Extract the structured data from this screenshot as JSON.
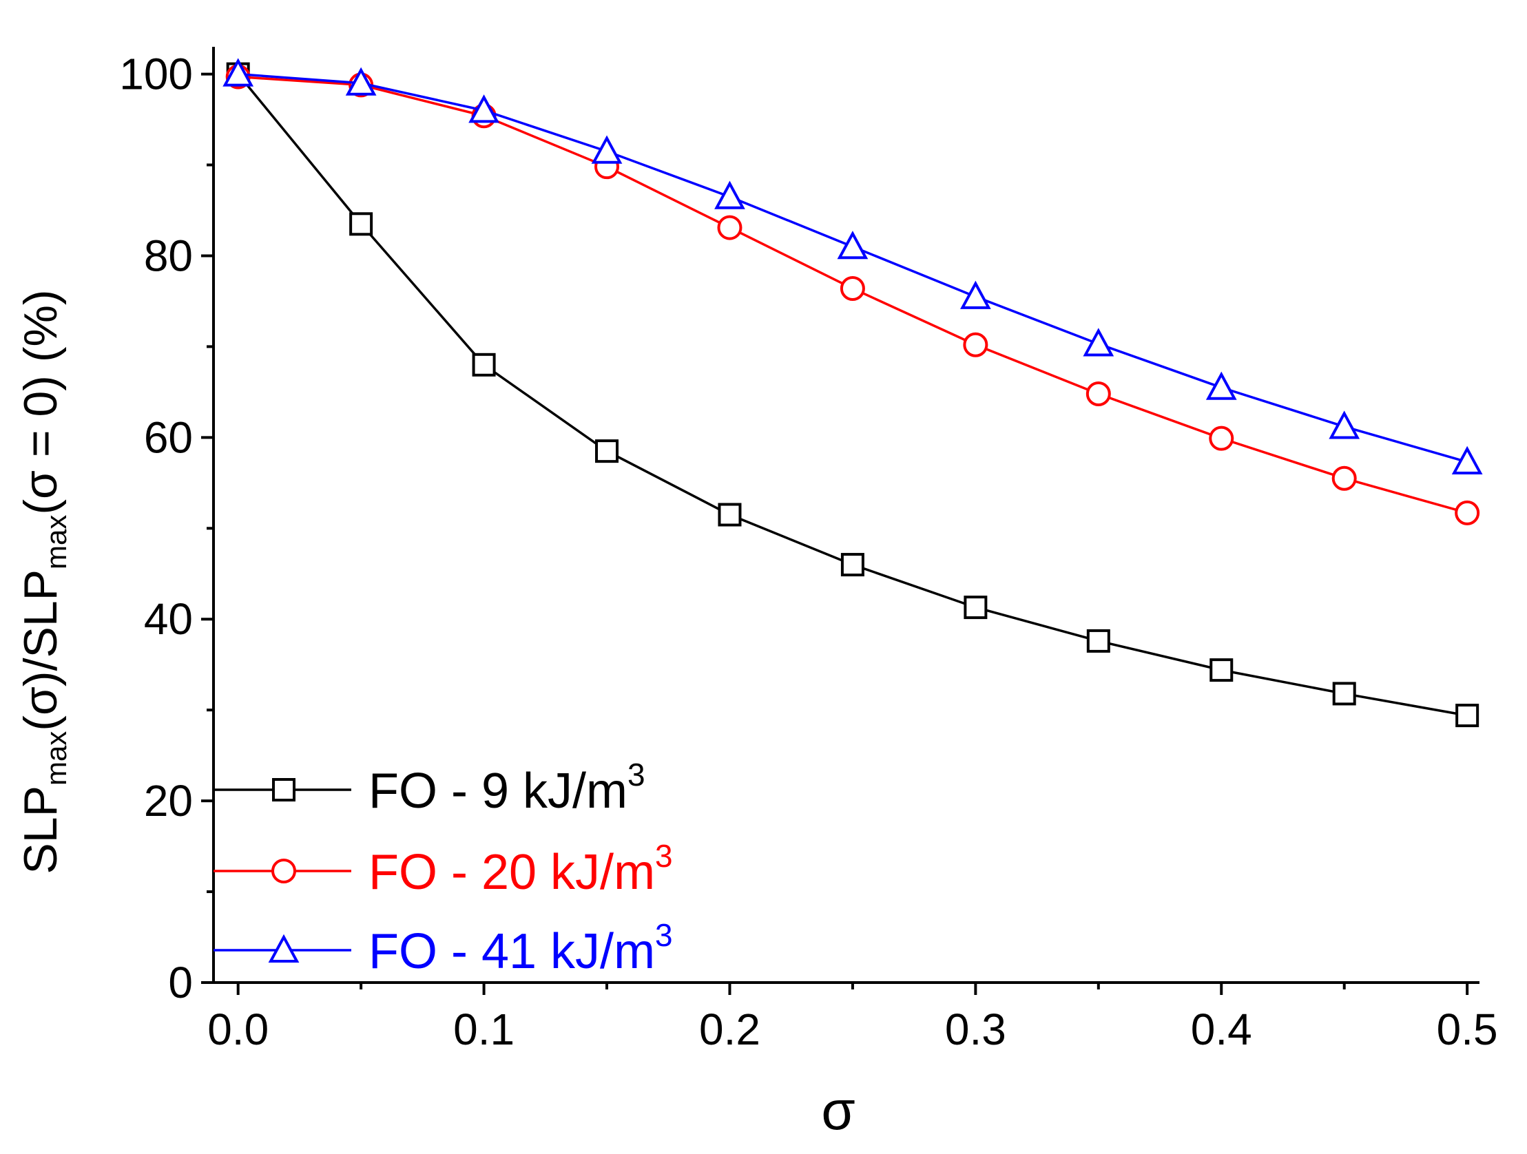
{
  "chart_data": {
    "type": "line",
    "xlabel": "σ",
    "ylabel": {
      "parts": [
        "SLP",
        "max",
        "(σ)/SLP",
        "max",
        "(σ = 0) (%)"
      ]
    },
    "xlim": [
      -0.01,
      0.505
    ],
    "ylim": [
      0,
      103
    ],
    "x_ticks": [
      0.0,
      0.1,
      0.2,
      0.3,
      0.4,
      0.5
    ],
    "x_tick_labels": [
      "0.0",
      "0.1",
      "0.2",
      "0.3",
      "0.4",
      "0.5"
    ],
    "y_ticks": [
      0,
      20,
      40,
      60,
      80,
      100
    ],
    "y_tick_labels": [
      "0",
      "20",
      "40",
      "60",
      "80",
      "100"
    ],
    "x": [
      0.0,
      0.05,
      0.1,
      0.15,
      0.2,
      0.25,
      0.3,
      0.35,
      0.4,
      0.45,
      0.5
    ],
    "legend_position": "bottom-left",
    "series": [
      {
        "name": "FO - 9 kJ/m3",
        "label_main": "FO - 9 kJ/m",
        "label_sup": "3",
        "color": "#000000",
        "marker": "square",
        "values": [
          100,
          83.5,
          68,
          58.5,
          51.5,
          46,
          41.3,
          37.6,
          34.4,
          31.8,
          29.4
        ]
      },
      {
        "name": "FO - 20 kJ/m3",
        "label_main": "FO - 20 kJ/m",
        "label_sup": "3",
        "color": "#ff0000",
        "marker": "circle",
        "values": [
          99.7,
          98.8,
          95.4,
          89.8,
          83.1,
          76.4,
          70.2,
          64.8,
          59.9,
          55.5,
          51.7
        ]
      },
      {
        "name": "FO - 41 kJ/m3",
        "label_main": "FO - 41 kJ/m",
        "label_sup": "3",
        "color": "#0000ff",
        "marker": "triangle",
        "values": [
          100,
          99,
          96,
          91.5,
          86.5,
          81,
          75.5,
          70.3,
          65.5,
          61.2,
          57.3
        ]
      }
    ]
  }
}
